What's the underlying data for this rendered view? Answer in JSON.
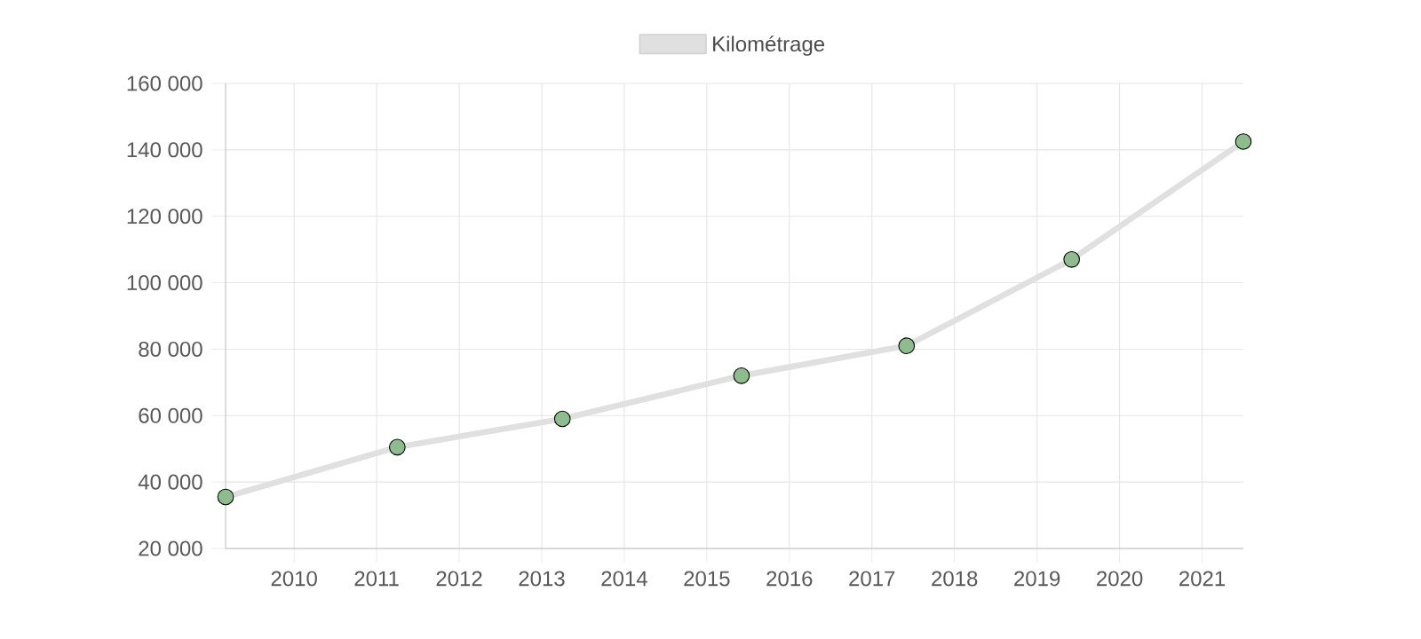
{
  "chart_data": {
    "type": "line",
    "x": [
      "2009-03",
      "2011-04",
      "2013-04",
      "2015-06",
      "2017-06",
      "2019-06",
      "2021-07"
    ],
    "series": [
      {
        "name": "Kilométrage",
        "color": "#e0e0e0",
        "colors": [
          "#8fbc8f",
          "#8fbc8f",
          "#8fbc8f",
          "#8fbc8f",
          "#8fbc8f",
          "#8fbc8f",
          "#8fbc8f"
        ],
        "values": [
          35500,
          50500,
          59000,
          72000,
          81000,
          107000,
          142500
        ]
      }
    ],
    "xlim": [
      "2009-03",
      "2021-07"
    ],
    "xticks": [
      "2010",
      "2011",
      "2012",
      "2013",
      "2014",
      "2015",
      "2016",
      "2017",
      "2018",
      "2019",
      "2020",
      "2021"
    ],
    "ylim": [
      20000,
      160000
    ],
    "yticks": [
      {
        "value": 20000,
        "label": "20 000"
      },
      {
        "value": 40000,
        "label": "40 000"
      },
      {
        "value": 60000,
        "label": "60 000"
      },
      {
        "value": 80000,
        "label": "80 000"
      },
      {
        "value": 100000,
        "label": "100 000"
      },
      {
        "value": 120000,
        "label": "120 000"
      },
      {
        "value": 140000,
        "label": "140 000"
      },
      {
        "value": 160000,
        "label": "160 000"
      }
    ],
    "grid": true,
    "legend": "top",
    "marker": "circle",
    "line_style": "solid"
  }
}
